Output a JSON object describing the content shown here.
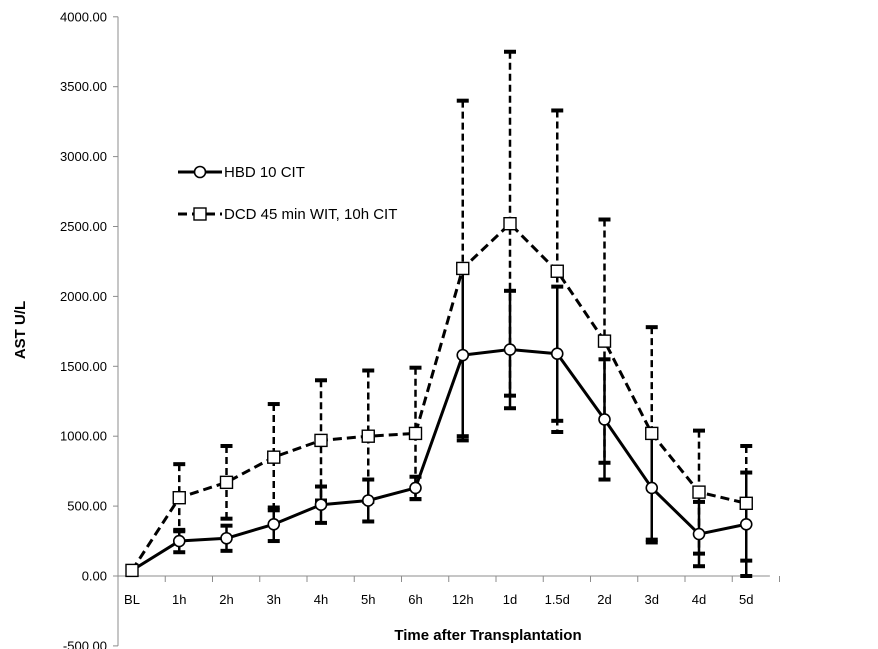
{
  "chart_data": {
    "type": "line",
    "title": "",
    "xlabel": "Time after Transplantation",
    "ylabel": "AST U/L",
    "ylim": [
      -500,
      4000
    ],
    "y_ticks": [
      "-500.00",
      "0.00",
      "500.00",
      "1000.00",
      "1500.00",
      "2000.00",
      "2500.00",
      "3000.00",
      "3500.00",
      "4000.00"
    ],
    "y_tick_values": [
      -500,
      0,
      500,
      1000,
      1500,
      2000,
      2500,
      3000,
      3500,
      4000
    ],
    "categories": [
      "BL",
      "1h",
      "2h",
      "3h",
      "4h",
      "5h",
      "6h",
      "12h",
      "1d",
      "1.5d",
      "2d",
      "3d",
      "4d",
      "5d"
    ],
    "grid": false,
    "legend_position": "upper-left",
    "series": [
      {
        "name": "HBD 10 CIT",
        "line_style": "solid",
        "marker": "circle",
        "values": [
          40,
          250,
          270,
          370,
          510,
          540,
          630,
          1580,
          1620,
          1590,
          1120,
          630,
          300,
          370
        ],
        "error": [
          0,
          80,
          90,
          120,
          130,
          150,
          80,
          610,
          420,
          480,
          430,
          390,
          230,
          370
        ]
      },
      {
        "name": "DCD 45 min WIT, 10h CIT",
        "line_style": "dashed",
        "marker": "square",
        "values": [
          40,
          560,
          670,
          850,
          970,
          1000,
          1020,
          2200,
          2520,
          2180,
          1680,
          1020,
          600,
          520
        ],
        "error": [
          0,
          240,
          260,
          380,
          430,
          470,
          470,
          1200,
          1230,
          1150,
          870,
          760,
          440,
          410
        ]
      }
    ]
  }
}
